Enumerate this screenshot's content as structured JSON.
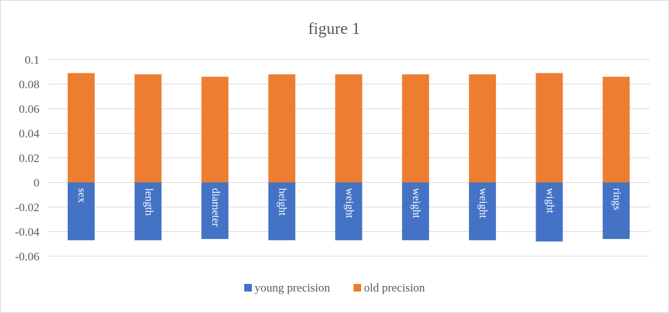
{
  "chart_data": {
    "type": "bar",
    "stacked": true,
    "title": "figure 1",
    "categories": [
      "sex",
      "length",
      "diameter",
      "height",
      "weight",
      "weight",
      "weight",
      "wight",
      "rings"
    ],
    "series": [
      {
        "name": "young precision",
        "color": "#4472c4",
        "values": [
          -0.047,
          -0.047,
          -0.046,
          -0.047,
          -0.047,
          -0.047,
          -0.047,
          -0.048,
          -0.046
        ]
      },
      {
        "name": "old precision",
        "color": "#ed7d31",
        "values": [
          0.089,
          0.088,
          0.086,
          0.088,
          0.088,
          0.088,
          0.088,
          0.089,
          0.086
        ]
      }
    ],
    "ylim": [
      -0.06,
      0.1
    ],
    "yticks": [
      "0.1",
      "0.08",
      "0.06",
      "0.04",
      "0.02",
      "0",
      "-0.02",
      "-0.04",
      "-0.06"
    ],
    "ytick_values": [
      0.1,
      0.08,
      0.06,
      0.04,
      0.02,
      0,
      -0.02,
      -0.04,
      -0.06
    ],
    "grid": true,
    "legend_position": "bottom",
    "category_labels_position": "inside-bars-rotated"
  }
}
